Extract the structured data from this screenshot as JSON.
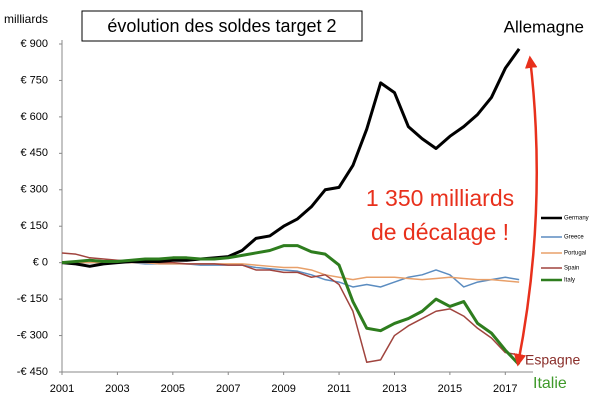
{
  "chart_data": {
    "type": "line",
    "title": "évolution des soldes target 2",
    "y_label": "milliards",
    "annotations": [
      "Allemagne",
      "1 350 milliards",
      "de décalage !",
      "Espagne",
      "Italie"
    ],
    "x": [
      2001,
      2001.5,
      2002,
      2002.5,
      2003,
      2003.5,
      2004,
      2004.5,
      2005,
      2005.5,
      2006,
      2006.5,
      2007,
      2007.5,
      2008,
      2008.5,
      2009,
      2009.5,
      2010,
      2010.5,
      2011,
      2011.5,
      2012,
      2012.5,
      2013,
      2013.5,
      2014,
      2014.5,
      2015,
      2015.5,
      2016,
      2016.5,
      2017,
      2017.5
    ],
    "series": [
      {
        "name": "Germany",
        "color": "#000000",
        "line_width": 3,
        "values": [
          0,
          -5,
          -15,
          -5,
          0,
          5,
          5,
          5,
          10,
          10,
          15,
          20,
          25,
          50,
          100,
          110,
          150,
          180,
          230,
          300,
          310,
          400,
          550,
          740,
          700,
          560,
          510,
          470,
          520,
          560,
          610,
          680,
          800,
          880
        ]
      },
      {
        "name": "Greece",
        "color": "#5b8cc0",
        "line_width": 1.5,
        "values": [
          0,
          0,
          0,
          0,
          0,
          0,
          -5,
          -5,
          -5,
          -5,
          -10,
          -10,
          -10,
          -10,
          -20,
          -25,
          -30,
          -35,
          -50,
          -70,
          -80,
          -100,
          -90,
          -100,
          -80,
          -60,
          -50,
          -30,
          -50,
          -100,
          -80,
          -70,
          -60,
          -70
        ]
      },
      {
        "name": "Portugal",
        "color": "#e8a06a",
        "line_width": 1.5,
        "values": [
          0,
          0,
          0,
          0,
          0,
          0,
          0,
          -5,
          -5,
          -5,
          -5,
          -5,
          -5,
          -5,
          -10,
          -15,
          -20,
          -20,
          -30,
          -50,
          -60,
          -70,
          -60,
          -60,
          -60,
          -65,
          -70,
          -65,
          -60,
          -65,
          -70,
          -70,
          -75,
          -80
        ]
      },
      {
        "name": "Spain",
        "color": "#a0443e",
        "line_width": 1.5,
        "values": [
          40,
          35,
          20,
          15,
          10,
          5,
          5,
          0,
          0,
          -5,
          -5,
          -5,
          -10,
          -10,
          -30,
          -30,
          -40,
          -40,
          -60,
          -50,
          -90,
          -200,
          -410,
          -400,
          -300,
          -260,
          -230,
          -200,
          -190,
          -220,
          -270,
          -310,
          -370,
          -380
        ]
      },
      {
        "name": "Italy",
        "color": "#2e7d1e",
        "line_width": 3,
        "values": [
          0,
          5,
          10,
          5,
          5,
          10,
          15,
          15,
          20,
          20,
          15,
          15,
          20,
          30,
          40,
          50,
          70,
          70,
          45,
          35,
          -10,
          -160,
          -270,
          -280,
          -250,
          -230,
          -200,
          -150,
          -180,
          -160,
          -250,
          -290,
          -360,
          -420
        ]
      }
    ],
    "xlim": [
      2001,
      2018
    ],
    "xticks": [
      2001,
      2003,
      2005,
      2007,
      2009,
      2011,
      2013,
      2015,
      2017
    ],
    "ylim": [
      -450,
      900
    ],
    "yticks": [
      {
        "value": 900,
        "label": "€ 900"
      },
      {
        "value": 750,
        "label": "€ 750"
      },
      {
        "value": 600,
        "label": "€ 600"
      },
      {
        "value": 450,
        "label": "€ 450"
      },
      {
        "value": 300,
        "label": "€ 300"
      },
      {
        "value": 150,
        "label": "€ 150"
      },
      {
        "value": 0,
        "label": "€ 0"
      },
      {
        "value": -150,
        "label": "-€ 150"
      },
      {
        "value": -300,
        "label": "-€ 300"
      },
      {
        "value": -450,
        "label": "-€ 450"
      }
    ],
    "legend": "right"
  }
}
